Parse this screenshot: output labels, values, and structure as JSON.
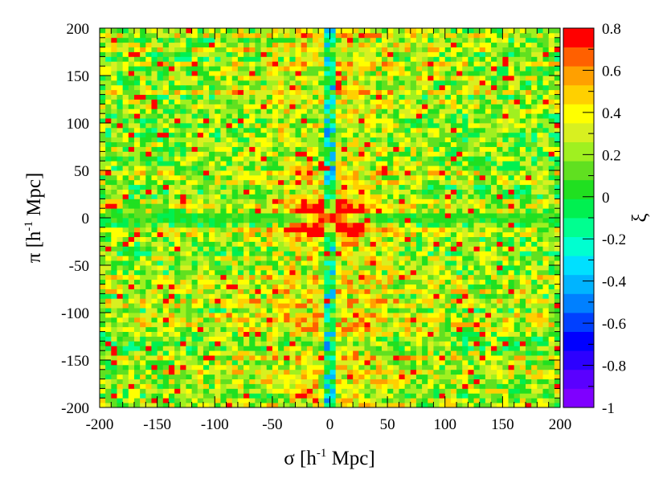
{
  "chart_data": {
    "type": "heatmap",
    "title": "",
    "xlabel": {
      "symbol": "σ",
      "unit_prefix": "[h",
      "unit_exp": "-1",
      "unit_suffix": " Mpc]"
    },
    "ylabel": {
      "symbol": "π",
      "unit_prefix": "[h",
      "unit_exp": "-1",
      "unit_suffix": " Mpc]"
    },
    "zlabel": "ξ",
    "xlim": [
      -200,
      200
    ],
    "ylim": [
      -200,
      200
    ],
    "zlim": [
      -1,
      0.8
    ],
    "bins_x": 80,
    "bins_y": 80,
    "x_ticks": [
      "-200",
      "-150",
      "-100",
      "-50",
      "0",
      "50",
      "100",
      "150",
      "200"
    ],
    "x_tick_values": [
      -200,
      -150,
      -100,
      -50,
      0,
      50,
      100,
      150,
      200
    ],
    "y_ticks": [
      "-200",
      "-150",
      "-100",
      "-50",
      "0",
      "50",
      "100",
      "150",
      "200"
    ],
    "y_tick_values": [
      -200,
      -150,
      -100,
      -50,
      0,
      50,
      100,
      150,
      200
    ],
    "z_ticks": [
      "-1",
      "-0.8",
      "-0.6",
      "-0.4",
      "-0.2",
      "0",
      "0.2",
      "0.4",
      "0.6",
      "0.8"
    ],
    "z_tick_values": [
      -1,
      -0.8,
      -0.6,
      -0.4,
      -0.2,
      0,
      0.2,
      0.4,
      0.6,
      0.8
    ],
    "palette": [
      "#7f00ff",
      "#5a00ff",
      "#2d00ff",
      "#0000ff",
      "#0040ff",
      "#0080ff",
      "#00b4ff",
      "#00e0ff",
      "#00ffd0",
      "#00ff90",
      "#00f050",
      "#20e020",
      "#60e020",
      "#a0f020",
      "#d8f020",
      "#ffff00",
      "#ffd000",
      "#ffa000",
      "#ff6000",
      "#ff0000"
    ],
    "features": {
      "central_peak": {
        "sigma": 0,
        "pi": 0,
        "value": 0.8,
        "sigma_width": 30,
        "pi_width": 20
      },
      "los_trough": {
        "sigma": 0,
        "value": -0.4,
        "width": 5,
        "pi_range": [
          -200,
          200
        ]
      },
      "background_mean": 0.25,
      "pi_zero_row_value": 0.05
    },
    "grid": false,
    "legend": "colorbar-right"
  }
}
